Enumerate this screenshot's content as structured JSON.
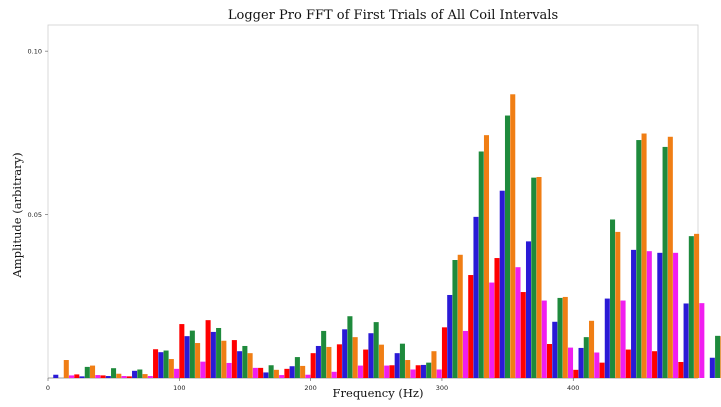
{
  "chart_data": {
    "type": "bar",
    "title": "Logger Pro FFT of First Trials of All Coil Intervals",
    "xlabel": "Frequency (Hz)",
    "ylabel": "Amplitude (arbitrary)",
    "xlim": [
      0,
      495
    ],
    "ylim": [
      0,
      0.108
    ],
    "x_ticks": [
      0,
      100,
      200,
      300,
      400
    ],
    "y_ticks": [
      0.05,
      0.1
    ],
    "x_tick_labels": [
      "0",
      "100",
      "200",
      "300",
      "400"
    ],
    "y_tick_labels": [
      "0.05",
      "0.10"
    ],
    "grid": false,
    "legend": "none",
    "bin_width_hz": 20,
    "series_colors": [
      "#ff0000",
      "#2a1ad6",
      "#1e8a3c",
      "#f07e14",
      "#f01ef0"
    ],
    "bins": [
      [
        0.0,
        0.001,
        0.0,
        0.0055,
        0.0008
      ],
      [
        0.0011,
        0.0005,
        0.0034,
        0.0038,
        0.0009
      ],
      [
        0.0008,
        0.0006,
        0.003,
        0.0013,
        0.0006
      ],
      [
        0.0005,
        0.0022,
        0.0026,
        0.0012,
        0.0006
      ],
      [
        0.0088,
        0.0079,
        0.0084,
        0.0058,
        0.0028
      ],
      [
        0.0165,
        0.0128,
        0.0145,
        0.0107,
        0.005
      ],
      [
        0.0177,
        0.0141,
        0.0153,
        0.0114,
        0.0046
      ],
      [
        0.0116,
        0.0082,
        0.0098,
        0.0076,
        0.0031
      ],
      [
        0.0031,
        0.0017,
        0.0039,
        0.0025,
        0.0009
      ],
      [
        0.0028,
        0.0036,
        0.0064,
        0.0037,
        0.001
      ],
      [
        0.0076,
        0.0098,
        0.0144,
        0.0095,
        0.0019
      ],
      [
        0.0103,
        0.0149,
        0.0189,
        0.0125,
        0.0038
      ],
      [
        0.0087,
        0.0137,
        0.0171,
        0.0102,
        0.0038
      ],
      [
        0.0039,
        0.0076,
        0.0105,
        0.0055,
        0.0026
      ],
      [
        0.0039,
        0.004,
        0.0047,
        0.0082,
        0.0026
      ],
      [
        0.0155,
        0.0254,
        0.0361,
        0.0377,
        0.0144
      ],
      [
        0.0315,
        0.0493,
        0.0693,
        0.0743,
        0.0292
      ],
      [
        0.0367,
        0.0573,
        0.0803,
        0.0868,
        0.0339
      ],
      [
        0.0263,
        0.0418,
        0.0613,
        0.0615,
        0.0237
      ],
      [
        0.0104,
        0.0172,
        0.0245,
        0.0248,
        0.0093
      ],
      [
        0.0025,
        0.0092,
        0.0125,
        0.0175,
        0.0078
      ],
      [
        0.0047,
        0.0243,
        0.0485,
        0.0447,
        0.0237
      ],
      [
        0.0087,
        0.0392,
        0.0728,
        0.0748,
        0.0388
      ],
      [
        0.0082,
        0.0383,
        0.0707,
        0.0738,
        0.0383
      ],
      [
        0.0049,
        0.0228,
        0.0434,
        0.0441,
        0.0229
      ],
      [
        0.0,
        0.0062,
        0.0129,
        0.0128,
        0.0061
      ]
    ]
  }
}
